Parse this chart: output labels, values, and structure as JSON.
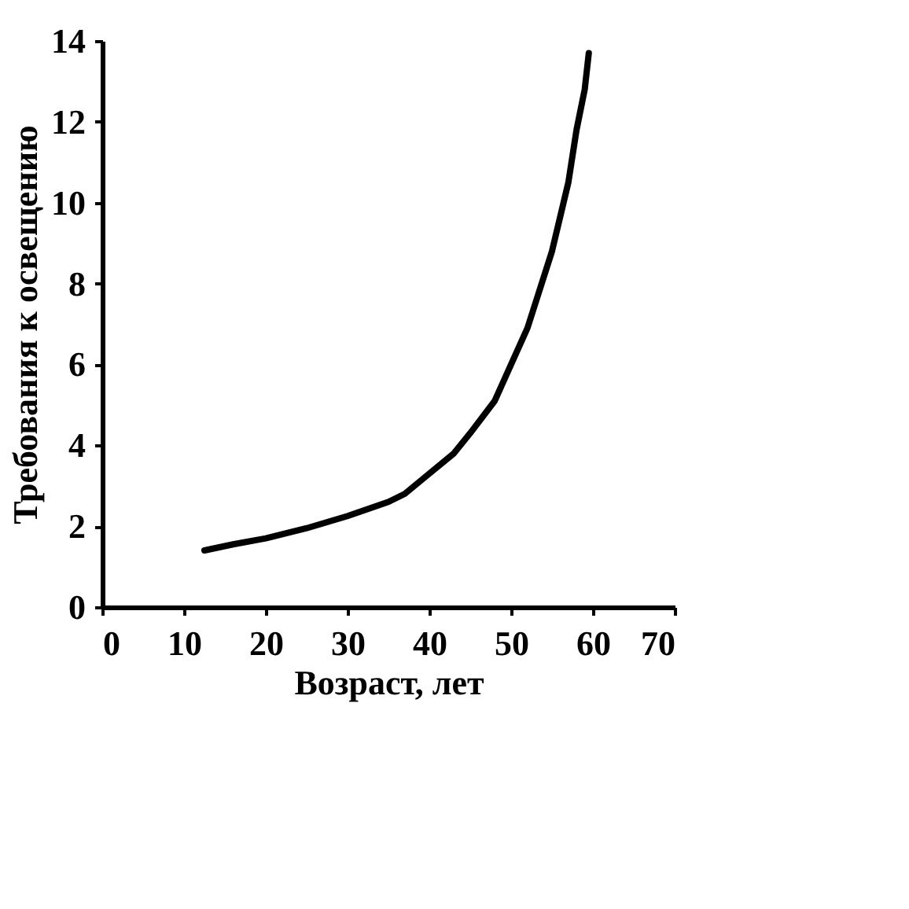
{
  "chart_data": {
    "type": "line",
    "xlabel": "Возраст, лет",
    "ylabel": "Требования к освещению",
    "x": [
      12.5,
      16,
      20,
      25,
      30,
      35,
      37,
      40,
      43,
      45,
      48,
      50,
      52,
      55,
      57,
      58,
      59,
      59.5
    ],
    "series": [
      {
        "color": "#000000",
        "values": [
          1.4,
          1.55,
          1.7,
          1.95,
          2.25,
          2.6,
          2.8,
          3.3,
          3.8,
          4.3,
          5.1,
          6.0,
          6.9,
          8.8,
          10.5,
          11.8,
          12.8,
          13.7
        ]
      }
    ],
    "xlim": [
      0,
      70
    ],
    "xticks": [
      0,
      10,
      20,
      30,
      40,
      50,
      60,
      70
    ],
    "ylim": [
      0,
      14
    ],
    "yticks": [
      0,
      2,
      4,
      6,
      8,
      10,
      12,
      14
    ],
    "grid": false,
    "legend": false,
    "marker": "none",
    "line_style": "solid"
  }
}
